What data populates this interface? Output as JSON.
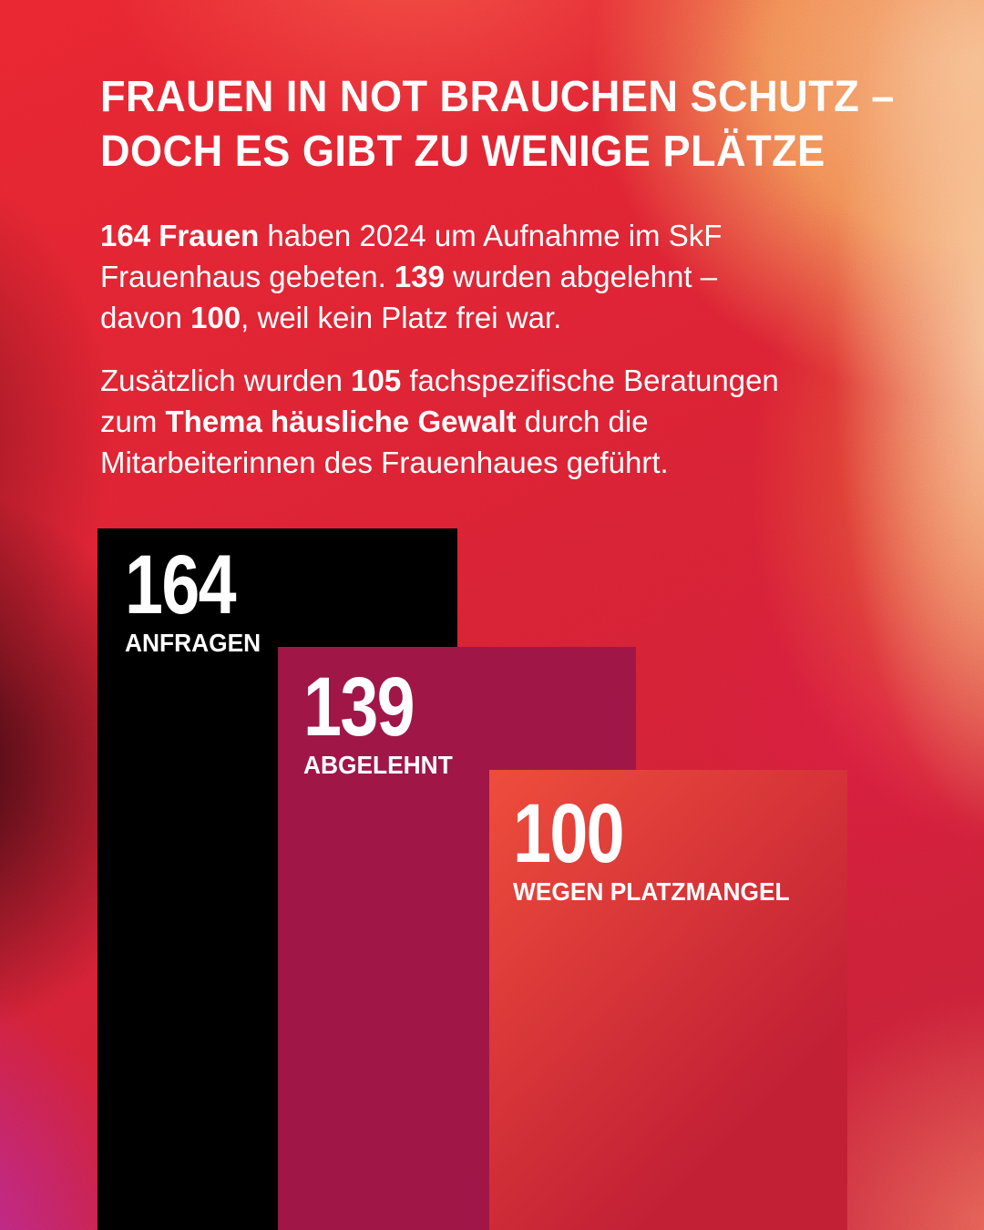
{
  "title": {
    "lines": [
      "FRAUEN IN NOT BRAUCHEN SCHUTZ –",
      "DOCH ES GIBT ZU WENIGE PLÄTZE"
    ]
  },
  "paragraphs": {
    "intro": {
      "lines": [
        [
          {
            "t": "164 Frauen",
            "b": true
          },
          {
            "t": " haben 2024 um Aufnahme im SkF",
            "b": false
          }
        ],
        [
          {
            "t": "Frauenhaus gebeten. ",
            "b": false
          },
          {
            "t": "139",
            "b": true
          },
          {
            "t": " wurden abgelehnt –",
            "b": false
          }
        ],
        [
          {
            "t": "davon ",
            "b": false
          },
          {
            "t": "100",
            "b": true
          },
          {
            "t": ", weil kein Platz frei war.",
            "b": false
          }
        ]
      ]
    },
    "counseling": {
      "lines": [
        [
          {
            "t": "Zusätzlich wurden ",
            "b": false
          },
          {
            "t": "105",
            "b": true
          },
          {
            "t": " fachspezifische Beratungen",
            "b": false
          }
        ],
        [
          {
            "t": "zum ",
            "b": false
          },
          {
            "t": "Thema häusliche Gewalt",
            "b": true
          },
          {
            "t": " durch die",
            "b": false
          }
        ],
        [
          {
            "t": "Mitarbeiterinnen des Frauenhaues geführt.",
            "b": false
          }
        ]
      ]
    }
  },
  "chart_data": {
    "type": "bar",
    "title": "FRAUEN IN NOT BRAUCHEN SCHUTZ – DOCH ES GIBT ZU WENIGE PLÄTZE",
    "categories": [
      "ANFRAGEN",
      "ABGELEHNT",
      "WEGEN PLATZMANGEL"
    ],
    "values": [
      164,
      139,
      100
    ],
    "value_labels": [
      "164",
      "139",
      "100"
    ],
    "bar_colors": [
      "#000000",
      "#a01747",
      "#d63a39"
    ],
    "orientation": "vertical",
    "layout": "overlapping staircase, bars anchored to bottom edge, descending left to right",
    "axes": "none",
    "grid": false,
    "legend": "none",
    "value_label_position": "inside-top-left",
    "text_color": "#ffffff"
  },
  "colors": {
    "bar1_bg": "#000000",
    "bar2_bg": "#a01747",
    "bar3_bg": "linear-gradient(135deg,#ee4d3c 0%,#c22035 75%)",
    "text": "#ffffff",
    "background_accents": [
      "#e8252f",
      "#f2a05e",
      "#f9d6ab",
      "#10030a",
      "#b22aa5",
      "#eb6e5a"
    ]
  }
}
